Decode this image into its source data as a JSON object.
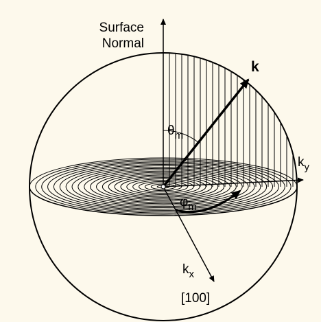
{
  "labels": {
    "surface_normal": [
      "Surface",
      "Normal"
    ],
    "k": "k",
    "theta": {
      "symbol": "θ",
      "sub": "m"
    },
    "phi": {
      "symbol": "φ",
      "sub": "m"
    },
    "ky": {
      "symbol": "k",
      "sub": "y"
    },
    "kx": {
      "symbol": "k",
      "sub": "x"
    },
    "direction": "[100]"
  }
}
